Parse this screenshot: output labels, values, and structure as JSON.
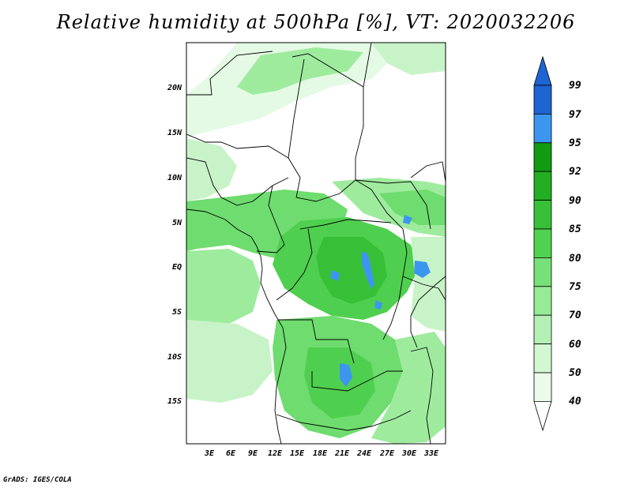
{
  "title": "Relative humidity at 500hPa [%], VT: 2020032206",
  "footer": "GrADS: IGES/COLA",
  "axes": {
    "lat_labels": [
      "20N",
      "15N",
      "10N",
      "5N",
      "EQ",
      "5S",
      "10S",
      "15S"
    ],
    "lon_labels": [
      "3E",
      "6E",
      "9E",
      "12E",
      "15E",
      "18E",
      "21E",
      "24E",
      "27E",
      "30E",
      "33E"
    ]
  },
  "colorbar": {
    "levels": [
      "99",
      "97",
      "95",
      "92",
      "90",
      "85",
      "80",
      "75",
      "70",
      "60",
      "50",
      "40"
    ],
    "colors": {
      "band_97_99": "#1e64d2",
      "band_95_97": "#3c96f0",
      "band_92_95": "#119b11",
      "band_90_92": "#23ae23",
      "band_85_90": "#37c037",
      "band_80_85": "#50d250",
      "band_75_80": "#78e078",
      "band_70_75": "#96eb96",
      "band_60_70": "#b4f0b4",
      "band_50_60": "#d2f7d2",
      "band_40_50": "#ebfbeb",
      "top_triangle": "#1e64d2"
    }
  },
  "map_colors": {
    "light": "#e4fae4",
    "pale": "#c8f3c8",
    "mid": "#9eeb9e",
    "green": "#6edc6e",
    "strong": "#4fcf4f",
    "deep": "#37c037",
    "lake": "#3c96f0",
    "border": "#000000"
  }
}
